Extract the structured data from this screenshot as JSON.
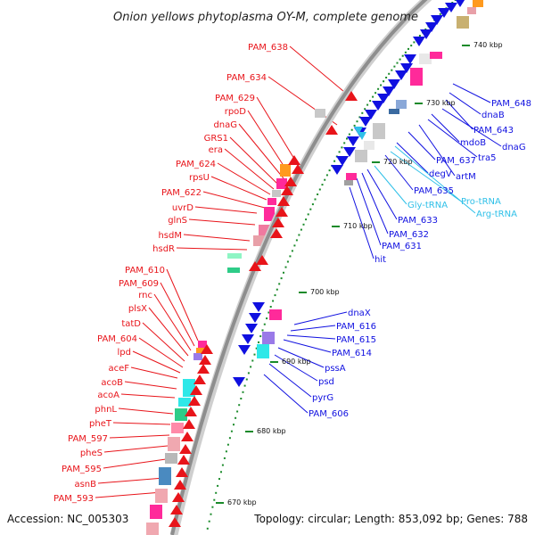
{
  "title": "Onion yellows phytoplasma OY-M, complete genome",
  "accession": "Accession: NC_005303",
  "summary": "Topology: circular; Length: 853,092 bp; Genes: 788",
  "colors": {
    "forward": "#e8141a",
    "reverse": "#1010e0",
    "rna": "#2fc0e8",
    "backbone": "#9a9a9a"
  },
  "kbp_labels": [
    "670 kbp",
    "680 kbp",
    "690 kbp",
    "700 kbp",
    "710 kbp",
    "720 kbp",
    "730 kbp",
    "740 kbp"
  ],
  "forward_genes": [
    "PAM_638",
    "PAM_634",
    "PAM_629",
    "rpoD",
    "dnaG",
    "GRS1",
    "era",
    "PAM_624",
    "rpsU",
    "PAM_622",
    "uvrD",
    "glnS",
    "hsdM",
    "hsdR",
    "PAM_610",
    "PAM_609",
    "rnc",
    "plsX",
    "tatD",
    "PAM_604",
    "lpd",
    "aceF",
    "acoB",
    "acoA",
    "phnL",
    "pheT",
    "PAM_597",
    "pheS",
    "PAM_595",
    "asnB",
    "PAM_593"
  ],
  "reverse_genes": [
    "dnaX",
    "PAM_616",
    "PAM_615",
    "PAM_614",
    "pssA",
    "psd",
    "pyrG",
    "PAM_606",
    "hit",
    "PAM_631",
    "PAM_632",
    "PAM_633",
    "PAM_635",
    "degV",
    "PAM_637",
    "artM",
    "tra5",
    "mdoB",
    "dnaG",
    "PAM_643",
    "dnaB",
    "PAM_648"
  ],
  "rna_genes": [
    "Gly-tRNA",
    "Pro-tRNA",
    "Arg-tRNA"
  ]
}
